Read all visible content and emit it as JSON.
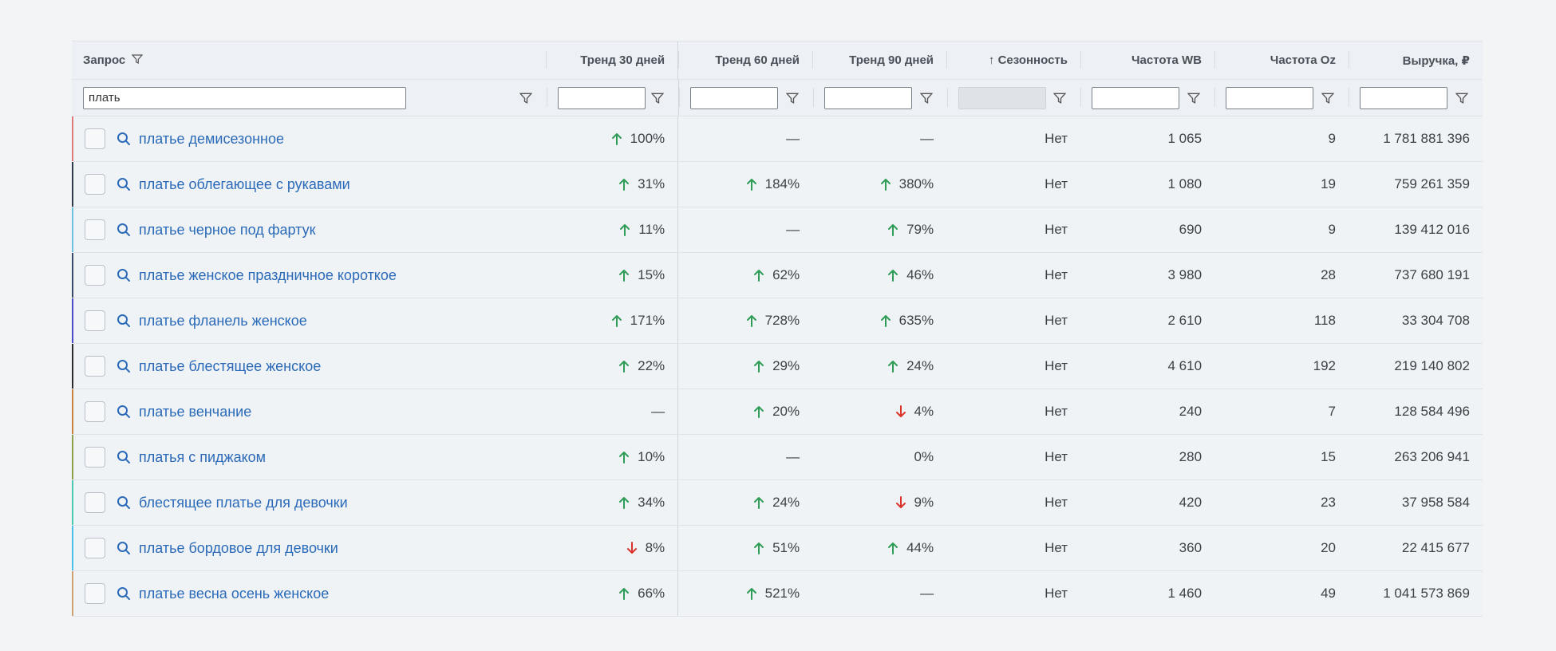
{
  "colors": {
    "up": "#2f9d57",
    "down": "#d9332b",
    "link": "#2a6ab8"
  },
  "header": {
    "query": "Запрос",
    "trend30": "Тренд 30 дней",
    "trend60": "Тренд 60 дней",
    "trend90": "Тренд 90 дней",
    "season": "↑ Сезонность",
    "freqWB": "Частота WB",
    "freqOz": "Частота Oz",
    "revenue": "Выручка, ₽"
  },
  "filters": {
    "query_value": "плать"
  },
  "rows": [
    {
      "accent": "#e07a7a",
      "query": "платье демисезонное",
      "t30": {
        "dir": "up",
        "val": "100%"
      },
      "t60": {
        "dir": "none",
        "val": "—"
      },
      "t90": {
        "dir": "none",
        "val": "—"
      },
      "season": "Нет",
      "wb": "1 065",
      "oz": "9",
      "rev": "1 781 881 396"
    },
    {
      "accent": "#2f3a4a",
      "query": "платье облегающее с рукавами",
      "t30": {
        "dir": "up",
        "val": "31%"
      },
      "t60": {
        "dir": "up",
        "val": "184%"
      },
      "t90": {
        "dir": "up",
        "val": "380%"
      },
      "season": "Нет",
      "wb": "1 080",
      "oz": "19",
      "rev": "759 261 359"
    },
    {
      "accent": "#6cc3e0",
      "query": "платье черное под фартук",
      "t30": {
        "dir": "up",
        "val": "11%"
      },
      "t60": {
        "dir": "none",
        "val": "—"
      },
      "t90": {
        "dir": "up",
        "val": "79%"
      },
      "season": "Нет",
      "wb": "690",
      "oz": "9",
      "rev": "139 412 016"
    },
    {
      "accent": "#3a4a6a",
      "query": "платье женское праздничное короткое",
      "t30": {
        "dir": "up",
        "val": "15%"
      },
      "t60": {
        "dir": "up",
        "val": "62%"
      },
      "t90": {
        "dir": "up",
        "val": "46%"
      },
      "season": "Нет",
      "wb": "3 980",
      "oz": "28",
      "rev": "737 680 191"
    },
    {
      "accent": "#4a4ac8",
      "query": "платье фланель женское",
      "t30": {
        "dir": "up",
        "val": "171%"
      },
      "t60": {
        "dir": "up",
        "val": "728%"
      },
      "t90": {
        "dir": "up",
        "val": "635%"
      },
      "season": "Нет",
      "wb": "2 610",
      "oz": "118",
      "rev": "33 304 708"
    },
    {
      "accent": "#2a2a2a",
      "query": "платье блестящее женское",
      "t30": {
        "dir": "up",
        "val": "22%"
      },
      "t60": {
        "dir": "up",
        "val": "29%"
      },
      "t90": {
        "dir": "up",
        "val": "24%"
      },
      "season": "Нет",
      "wb": "4 610",
      "oz": "192",
      "rev": "219 140 802"
    },
    {
      "accent": "#c8803a",
      "query": "платье венчание",
      "t30": {
        "dir": "none",
        "val": "—"
      },
      "t60": {
        "dir": "up",
        "val": "20%"
      },
      "t90": {
        "dir": "down",
        "val": "4%"
      },
      "season": "Нет",
      "wb": "240",
      "oz": "7",
      "rev": "128 584 496"
    },
    {
      "accent": "#8aa04a",
      "query": "платья с пиджаком",
      "t30": {
        "dir": "up",
        "val": "10%"
      },
      "t60": {
        "dir": "none",
        "val": "—"
      },
      "t90": {
        "dir": "none",
        "val": "0%"
      },
      "season": "Нет",
      "wb": "280",
      "oz": "15",
      "rev": "263 206 941"
    },
    {
      "accent": "#4ac8b0",
      "query": "блестящее платье для девочки",
      "t30": {
        "dir": "up",
        "val": "34%"
      },
      "t60": {
        "dir": "up",
        "val": "24%"
      },
      "t90": {
        "dir": "down",
        "val": "9%"
      },
      "season": "Нет",
      "wb": "420",
      "oz": "23",
      "rev": "37 958 584"
    },
    {
      "accent": "#4ac0e8",
      "query": "платье бордовое для девочки",
      "t30": {
        "dir": "down",
        "val": "8%"
      },
      "t60": {
        "dir": "up",
        "val": "51%"
      },
      "t90": {
        "dir": "up",
        "val": "44%"
      },
      "season": "Нет",
      "wb": "360",
      "oz": "20",
      "rev": "22 415 677"
    },
    {
      "accent": "#d0a070",
      "query": "платье весна осень женское",
      "t30": {
        "dir": "up",
        "val": "66%"
      },
      "t60": {
        "dir": "up",
        "val": "521%"
      },
      "t90": {
        "dir": "none",
        "val": "—"
      },
      "season": "Нет",
      "wb": "1 460",
      "oz": "49",
      "rev": "1 041 573 869"
    }
  ]
}
